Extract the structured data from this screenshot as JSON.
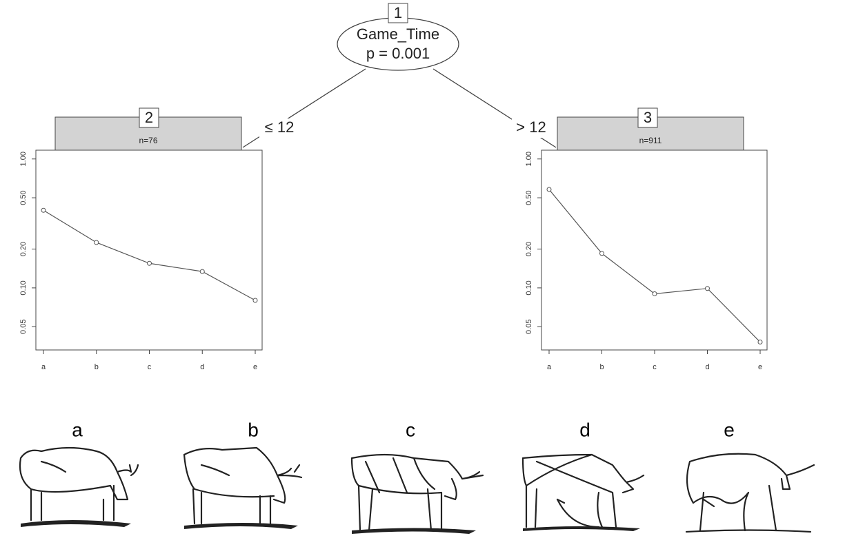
{
  "nodes": [
    {
      "id": "1",
      "label": "Game_Time",
      "p": "p = 0.001"
    },
    {
      "id": "2",
      "label": "n=76"
    },
    {
      "id": "3",
      "label": "n=911"
    }
  ],
  "edges": [
    {
      "label": "≤ 12"
    },
    {
      "label": "> 12"
    }
  ],
  "chart_data": [
    {
      "type": "line",
      "categories": [
        "a",
        "b",
        "c",
        "d",
        "e"
      ],
      "values": [
        0.4,
        0.225,
        0.155,
        0.134,
        0.08
      ],
      "color": "#555555",
      "log_y": true,
      "ylim": [
        0.033,
        1.17
      ],
      "yticks": [
        0.05,
        {
          "value": 0.1,
          "label": "0.10"
        },
        {
          "value": 0.2,
          "label": "0.20"
        },
        {
          "value": 0.5,
          "label": "0.50"
        },
        {
          "value": 1,
          "label": "1.00"
        }
      ]
    },
    {
      "type": "line",
      "categories": [
        "a",
        "b",
        "c",
        "d",
        "e"
      ],
      "values": [
        0.58,
        0.185,
        0.09,
        0.099,
        0.038
      ],
      "color": "#555555",
      "log_y": true,
      "ylim": [
        0.033,
        1.17
      ],
      "yticks": [
        0.05,
        {
          "value": 0.1,
          "label": "0.10"
        },
        {
          "value": 0.2,
          "label": "0.20"
        },
        {
          "value": 0.5,
          "label": "0.50"
        },
        {
          "value": 1,
          "label": "1.00"
        }
      ]
    }
  ],
  "images": {
    "labels": [
      "a",
      "b",
      "c",
      "d",
      "e"
    ]
  }
}
